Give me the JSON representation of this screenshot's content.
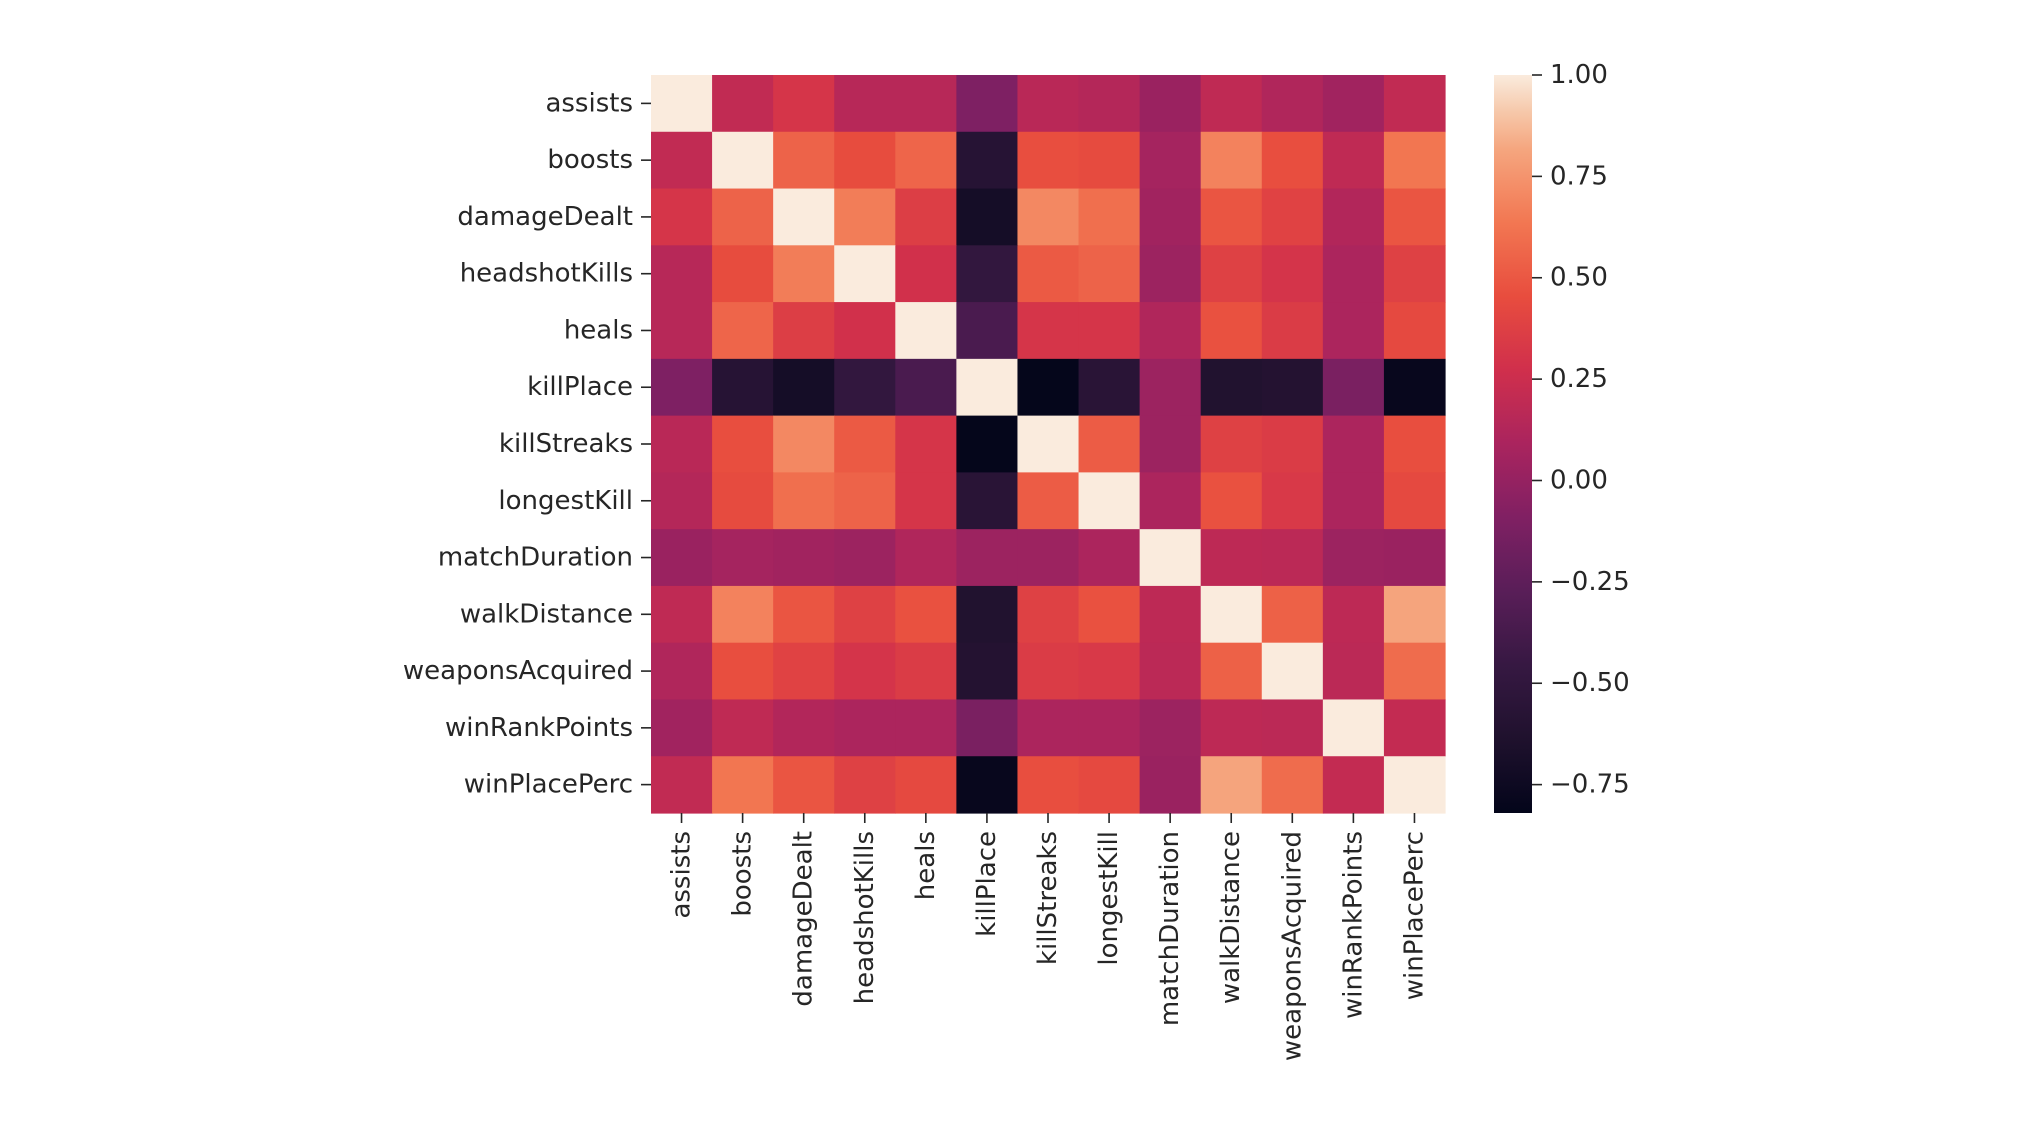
{
  "chart_data": {
    "type": "heatmap",
    "title": "",
    "xlabel": "",
    "ylabel": "",
    "colormap": "rocket",
    "vmin": -0.82,
    "vmax": 1.0,
    "labels": [
      "assists",
      "boosts",
      "damageDealt",
      "headshotKills",
      "heals",
      "killPlace",
      "killStreaks",
      "longestKill",
      "matchDuration",
      "walkDistance",
      "weaponsAcquired",
      "winRankPoints",
      "winPlacePerc"
    ],
    "colorbar_ticks": [
      1.0,
      0.75,
      0.5,
      0.25,
      0.0,
      -0.25,
      -0.5,
      -0.75
    ],
    "colorbar_tick_labels": [
      "1.00",
      "0.75",
      "0.50",
      "0.25",
      "0.00",
      "−0.25",
      "−0.50",
      "−0.75"
    ],
    "matrix": [
      [
        1.0,
        0.2,
        0.31,
        0.15,
        0.15,
        -0.1,
        0.16,
        0.14,
        0.02,
        0.19,
        0.12,
        0.05,
        0.2
      ],
      [
        0.2,
        1.0,
        0.55,
        0.45,
        0.56,
        -0.58,
        0.46,
        0.44,
        0.07,
        0.68,
        0.46,
        0.19,
        0.63
      ],
      [
        0.31,
        0.55,
        1.0,
        0.66,
        0.36,
        -0.7,
        0.7,
        0.6,
        0.05,
        0.49,
        0.39,
        0.13,
        0.49
      ],
      [
        0.15,
        0.45,
        0.66,
        1.0,
        0.28,
        -0.49,
        0.51,
        0.55,
        0.03,
        0.38,
        0.3,
        0.1,
        0.38
      ],
      [
        0.15,
        0.56,
        0.36,
        0.28,
        1.0,
        -0.35,
        0.31,
        0.31,
        0.12,
        0.47,
        0.35,
        0.1,
        0.43
      ],
      [
        -0.1,
        -0.58,
        -0.7,
        -0.49,
        -0.35,
        1.0,
        -0.81,
        -0.56,
        0.03,
        -0.62,
        -0.6,
        -0.12,
        -0.79
      ],
      [
        0.16,
        0.46,
        0.7,
        0.51,
        0.31,
        -0.81,
        1.0,
        0.52,
        0.03,
        0.38,
        0.35,
        0.1,
        0.46
      ],
      [
        0.14,
        0.44,
        0.6,
        0.55,
        0.31,
        -0.56,
        0.52,
        1.0,
        0.1,
        0.47,
        0.33,
        0.1,
        0.43
      ],
      [
        0.02,
        0.07,
        0.05,
        0.03,
        0.12,
        0.03,
        0.03,
        0.1,
        1.0,
        0.18,
        0.17,
        0.03,
        0.02
      ],
      [
        0.19,
        0.68,
        0.49,
        0.38,
        0.47,
        -0.62,
        0.38,
        0.47,
        0.18,
        1.0,
        0.54,
        0.18,
        0.81
      ],
      [
        0.12,
        0.46,
        0.39,
        0.3,
        0.35,
        -0.6,
        0.35,
        0.33,
        0.17,
        0.54,
        1.0,
        0.17,
        0.59
      ],
      [
        0.05,
        0.19,
        0.13,
        0.1,
        0.1,
        -0.12,
        0.1,
        0.1,
        0.03,
        0.18,
        0.17,
        1.0,
        0.21
      ],
      [
        0.2,
        0.63,
        0.49,
        0.38,
        0.43,
        -0.79,
        0.46,
        0.43,
        0.02,
        0.81,
        0.59,
        0.21,
        1.0
      ]
    ]
  }
}
